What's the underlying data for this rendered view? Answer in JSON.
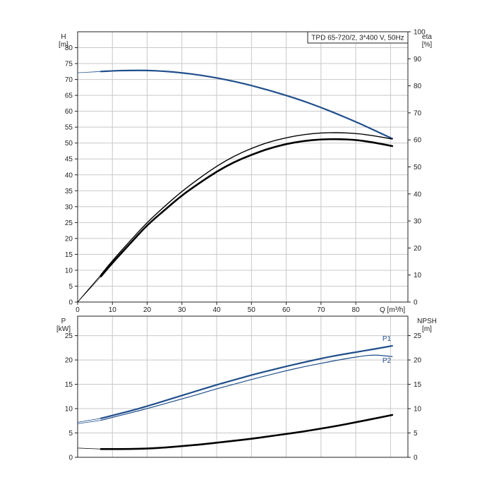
{
  "chart_data": [
    {
      "type": "line",
      "title": "TPD 65-720/2, 3*400 V, 50Hz",
      "xlabel": "Q [m³/h]",
      "ylabel_left": "H\n[m]",
      "ylabel_right": "eta\n[%]",
      "xlim": [
        0,
        95
      ],
      "ylim_left": [
        0,
        85
      ],
      "ylim_right": [
        0,
        100
      ],
      "x_ticks": [
        0,
        10,
        20,
        30,
        40,
        50,
        60,
        70,
        80
      ],
      "x_tick_labels": [
        "0",
        "10",
        "20",
        "30",
        "40",
        "50",
        "60",
        "70",
        "80"
      ],
      "y_left_ticks": [
        0,
        5,
        10,
        15,
        20,
        25,
        30,
        35,
        40,
        45,
        50,
        55,
        60,
        65,
        70,
        75,
        80
      ],
      "y_right_ticks": [
        0,
        10,
        20,
        30,
        40,
        50,
        60,
        70,
        80,
        90,
        100
      ],
      "grid": true,
      "colors": {
        "head": "#1f4e8c",
        "efficiency": "#000000"
      },
      "series": [
        {
          "axis": "left",
          "color": "#1f4e8c",
          "x": [
            0,
            6.7,
            10,
            15,
            20,
            25,
            30,
            35,
            40,
            45,
            50,
            55,
            60,
            65,
            70,
            75,
            80,
            85,
            90.5
          ],
          "y": [
            72.1,
            72.5,
            72.7,
            72.85,
            72.85,
            72.6,
            72.1,
            71.4,
            70.5,
            69.4,
            68.1,
            66.6,
            65.0,
            63.2,
            61.2,
            59.0,
            56.7,
            54.2,
            51.4
          ]
        },
        {
          "axis": "right",
          "color": "#000000",
          "x": [
            0,
            6.7,
            10,
            15,
            20,
            25,
            30,
            35,
            40,
            45,
            50,
            55,
            60,
            65,
            70,
            75,
            80,
            85,
            90.5
          ],
          "y": [
            0,
            9.5,
            14.5,
            21.5,
            28.5,
            34.0,
            39.5,
            44.0,
            48.3,
            51.8,
            54.5,
            56.8,
            58.5,
            59.6,
            60.2,
            60.3,
            60.0,
            59.1,
            57.7
          ]
        },
        {
          "axis": "right",
          "color": "#000000",
          "x": [
            0,
            6.7,
            10,
            15,
            20,
            25,
            30,
            35,
            40,
            45,
            50,
            55,
            60,
            65,
            70,
            75,
            80,
            85,
            90.5
          ],
          "y": [
            0,
            10.1,
            15.3,
            22.5,
            29.5,
            35.4,
            41.0,
            45.8,
            50.3,
            54.0,
            56.9,
            59.2,
            60.8,
            62.0,
            62.6,
            62.7,
            62.4,
            61.6,
            60.3
          ]
        }
      ]
    },
    {
      "type": "line",
      "xlabel": "",
      "ylabel_left": "P\n[kW]",
      "ylabel_right": "NPSH\n[m]",
      "xlim": [
        0,
        95
      ],
      "ylim_left": [
        0,
        29
      ],
      "ylim_right": [
        0,
        29
      ],
      "y_left_ticks": [
        0,
        5,
        10,
        15,
        20,
        25
      ],
      "y_right_ticks": [
        0,
        5,
        10,
        15,
        20,
        25
      ],
      "grid": true,
      "colors": {
        "power": "#1f4e8c",
        "npsh": "#000000"
      },
      "series": [
        {
          "name": "P1",
          "axis": "left",
          "color": "#1f4e8c",
          "x": [
            0,
            6.7,
            10,
            15,
            20,
            25,
            30,
            35,
            40,
            45,
            50,
            55,
            60,
            65,
            70,
            75,
            80,
            85,
            90.5
          ],
          "y": [
            7.2,
            8.0,
            8.6,
            9.5,
            10.5,
            11.6,
            12.7,
            13.8,
            14.9,
            15.9,
            16.9,
            17.8,
            18.7,
            19.5,
            20.3,
            21.0,
            21.6,
            22.2,
            22.9
          ]
        },
        {
          "name": "P2",
          "axis": "left",
          "color": "#1f4e8c",
          "x": [
            0,
            6.7,
            10,
            15,
            20,
            25,
            30,
            35,
            40,
            45,
            50,
            55,
            60,
            65,
            70,
            75,
            80,
            85,
            90.5
          ],
          "y": [
            6.9,
            7.6,
            8.2,
            9.1,
            10.0,
            11.0,
            12.0,
            13.0,
            14.1,
            15.0,
            16.0,
            16.9,
            17.8,
            18.6,
            19.3,
            20.0,
            20.6,
            21.1,
            20.7
          ]
        },
        {
          "axis": "right",
          "color": "#000000",
          "x": [
            0,
            6.7,
            10,
            15,
            20,
            25,
            30,
            35,
            40,
            45,
            50,
            55,
            60,
            65,
            70,
            75,
            80,
            85,
            90.5
          ],
          "y": [
            1.9,
            1.7,
            1.7,
            1.7,
            1.8,
            2.0,
            2.3,
            2.6,
            3.0,
            3.4,
            3.8,
            4.3,
            4.8,
            5.3,
            5.9,
            6.5,
            7.2,
            7.9,
            8.7
          ]
        }
      ]
    }
  ]
}
